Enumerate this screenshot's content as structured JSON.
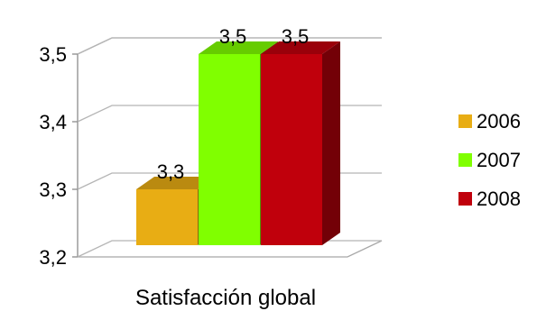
{
  "chart_data": {
    "type": "bar",
    "categories": [
      "Satisfacción global"
    ],
    "series": [
      {
        "name": "2006",
        "values": [
          3.3
        ],
        "value_label": "3,3",
        "color": "#e8ad14"
      },
      {
        "name": "2007",
        "values": [
          3.5
        ],
        "value_label": "3,5",
        "color": "#80ff00"
      },
      {
        "name": "2008",
        "values": [
          3.5
        ],
        "value_label": "3,5",
        "color": "#c0000c"
      }
    ],
    "ylim": [
      3.2,
      3.5
    ],
    "yticks": [
      3.2,
      3.3,
      3.4,
      3.5
    ],
    "ytick_labels": [
      "3,2",
      "3,3",
      "3,4",
      "3,5"
    ],
    "xlabel": "Satisfacción global",
    "title": "",
    "ylabel": "",
    "legend": "right",
    "grid": true,
    "style": "3d-column"
  }
}
